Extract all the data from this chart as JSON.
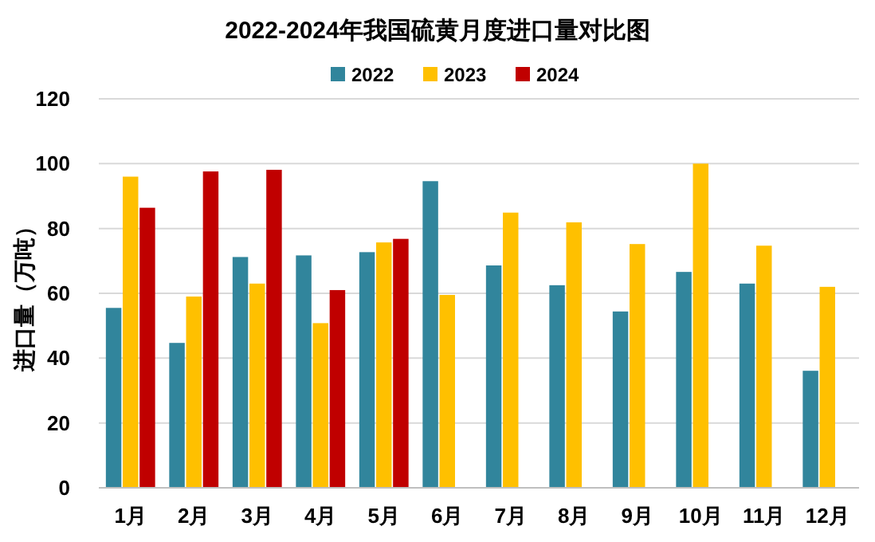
{
  "chart_data": {
    "type": "bar",
    "title": "2022-2024年我国硫黄月度进口量对比图",
    "ylabel": "进口量（万吨）",
    "categories": [
      "1月",
      "2月",
      "3月",
      "4月",
      "5月",
      "6月",
      "7月",
      "8月",
      "9月",
      "10月",
      "11月",
      "12月"
    ],
    "series": [
      {
        "name": "2022",
        "color": "#31859c",
        "values": [
          55.5,
          44.7,
          71.2,
          71.7,
          72.7,
          94.6,
          68.6,
          62.5,
          54.4,
          66.6,
          63,
          36.1
        ]
      },
      {
        "name": "2023",
        "color": "#ffc000",
        "values": [
          96,
          59,
          63,
          50.8,
          75.7,
          59.5,
          84.9,
          81.9,
          75.2,
          100,
          74.7,
          62
        ]
      },
      {
        "name": "2024",
        "color": "#c00000",
        "values": [
          86.4,
          97.6,
          98.1,
          61,
          76.8,
          null,
          null,
          null,
          null,
          null,
          null,
          null
        ]
      }
    ],
    "ylim": [
      0,
      120
    ],
    "yticks": [
      0,
      20,
      40,
      60,
      80,
      100,
      120
    ],
    "grid": "y",
    "legend": "top"
  }
}
